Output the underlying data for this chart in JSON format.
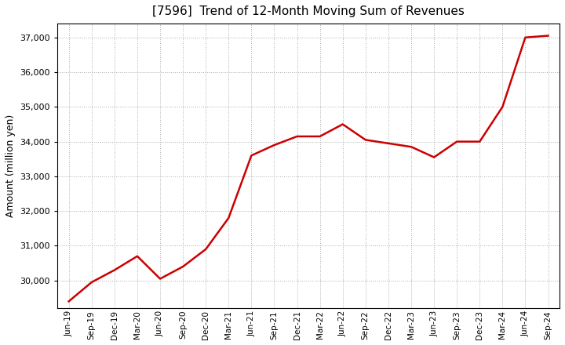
{
  "title": "[7596]  Trend of 12-Month Moving Sum of Revenues",
  "ylabel": "Amount (million yen)",
  "line_color": "#CC0000",
  "line_width": 1.8,
  "background_color": "#FFFFFF",
  "plot_bg_color": "#FFFFFF",
  "grid_color": "#999999",
  "ylim": [
    29200,
    37400
  ],
  "yticks": [
    30000,
    31000,
    32000,
    33000,
    34000,
    35000,
    36000,
    37000
  ],
  "labels": [
    "Jun-19",
    "Sep-19",
    "Dec-19",
    "Mar-20",
    "Jun-20",
    "Sep-20",
    "Dec-20",
    "Mar-21",
    "Jun-21",
    "Sep-21",
    "Dec-21",
    "Mar-22",
    "Jun-22",
    "Sep-22",
    "Dec-22",
    "Mar-23",
    "Jun-23",
    "Sep-23",
    "Dec-23",
    "Mar-24",
    "Jun-24",
    "Sep-24"
  ],
  "values": [
    29400,
    29950,
    30300,
    30700,
    30050,
    30400,
    30900,
    31800,
    33600,
    33900,
    34150,
    34150,
    34500,
    34050,
    33950,
    33850,
    33550,
    34000,
    34000,
    35000,
    37000,
    37050
  ]
}
